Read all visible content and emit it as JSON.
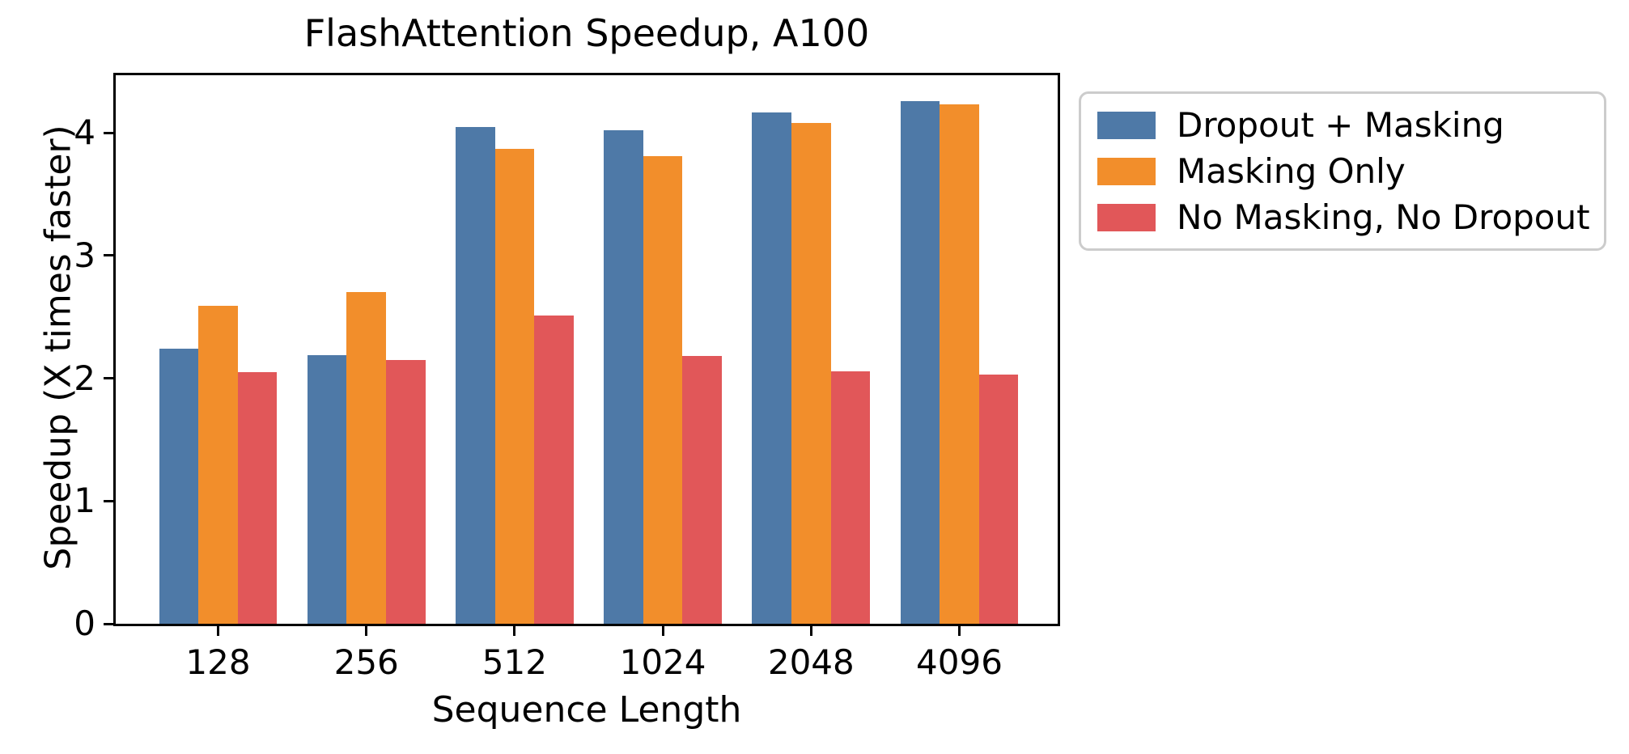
{
  "chart_data": {
    "type": "bar",
    "title": "FlashAttention Speedup, A100",
    "xlabel": "Sequence Length",
    "ylabel": "Speedup (X times faster)",
    "categories": [
      "128",
      "256",
      "512",
      "1024",
      "2048",
      "4096"
    ],
    "series": [
      {
        "name": "Dropout + Masking",
        "color": "#4E79A7",
        "values": [
          2.24,
          2.19,
          4.05,
          4.02,
          4.17,
          4.26
        ]
      },
      {
        "name": "Masking Only",
        "color": "#F28E2B",
        "values": [
          2.59,
          2.7,
          3.87,
          3.81,
          4.08,
          4.23
        ]
      },
      {
        "name": "No Masking, No Dropout",
        "color": "#E15759",
        "values": [
          2.05,
          2.15,
          2.51,
          2.18,
          2.06,
          2.03
        ]
      }
    ],
    "yticks": [
      0,
      1,
      2,
      3,
      4
    ],
    "ylim": [
      0,
      4.47
    ],
    "grid": false,
    "legend_position": "outside upper right",
    "background_color": "#ffffff",
    "axis_color": "#000000",
    "legend_border_color": "#cccccc"
  }
}
